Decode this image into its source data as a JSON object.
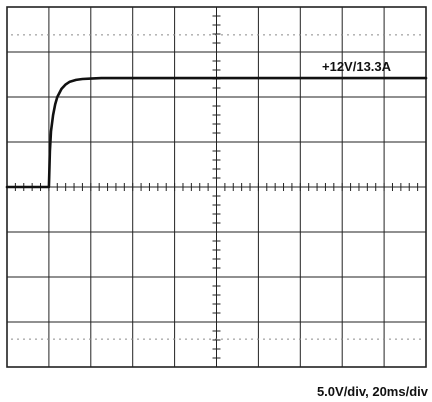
{
  "chart_data": {
    "type": "line",
    "title": "",
    "trace_label": "+12V/13.3A",
    "scale_label": "5.0V/div,  20ms/div",
    "divisions": {
      "x": 10,
      "y": 8
    },
    "x_unit": "ms",
    "y_unit": "V",
    "x_range": [
      0,
      200
    ],
    "y_range": [
      -20,
      20
    ],
    "grid": true,
    "series": [
      {
        "x": [
          0,
          20,
          20.5,
          21,
          22,
          23,
          24,
          26,
          28,
          30,
          33,
          36,
          40,
          45,
          50,
          60,
          200
        ],
        "y": [
          0,
          0,
          4.0,
          6.2,
          8.0,
          9.2,
          10.0,
          10.9,
          11.4,
          11.7,
          11.9,
          12.0,
          12.05,
          12.1,
          12.1,
          12.1,
          12.1
        ]
      }
    ]
  },
  "colors": {
    "grid": "#222222",
    "dotted": "#8a8a8a",
    "trace": "#111111"
  }
}
